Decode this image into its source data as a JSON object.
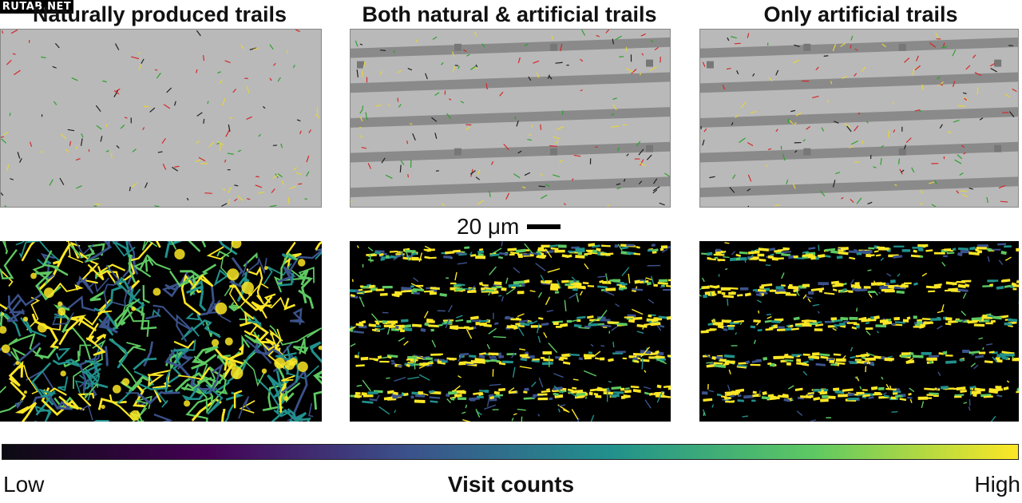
{
  "watermark": "RUTAB.NET",
  "panels": [
    {
      "title": "Naturally produced trails",
      "stripes": false
    },
    {
      "title": "Both natural & artificial trails",
      "stripes": true
    },
    {
      "title": "Only artificial trails",
      "stripes": true
    }
  ],
  "scale_bar": {
    "label": "20 μm"
  },
  "colorbar": {
    "title": "Visit counts",
    "low_label": "Low",
    "high_label": "High",
    "colors": [
      "#0b0b12",
      "#440154",
      "#3b528b",
      "#21918c",
      "#5ec962",
      "#fde725"
    ]
  },
  "colors": {
    "brightfield_bg": "#b9b9b9",
    "stripe": "#8a8a8a",
    "heat_bg": "#000000",
    "track_colors": [
      "#d62728",
      "#2ca02c",
      "#1f1f1f",
      "#e5d43b"
    ]
  }
}
